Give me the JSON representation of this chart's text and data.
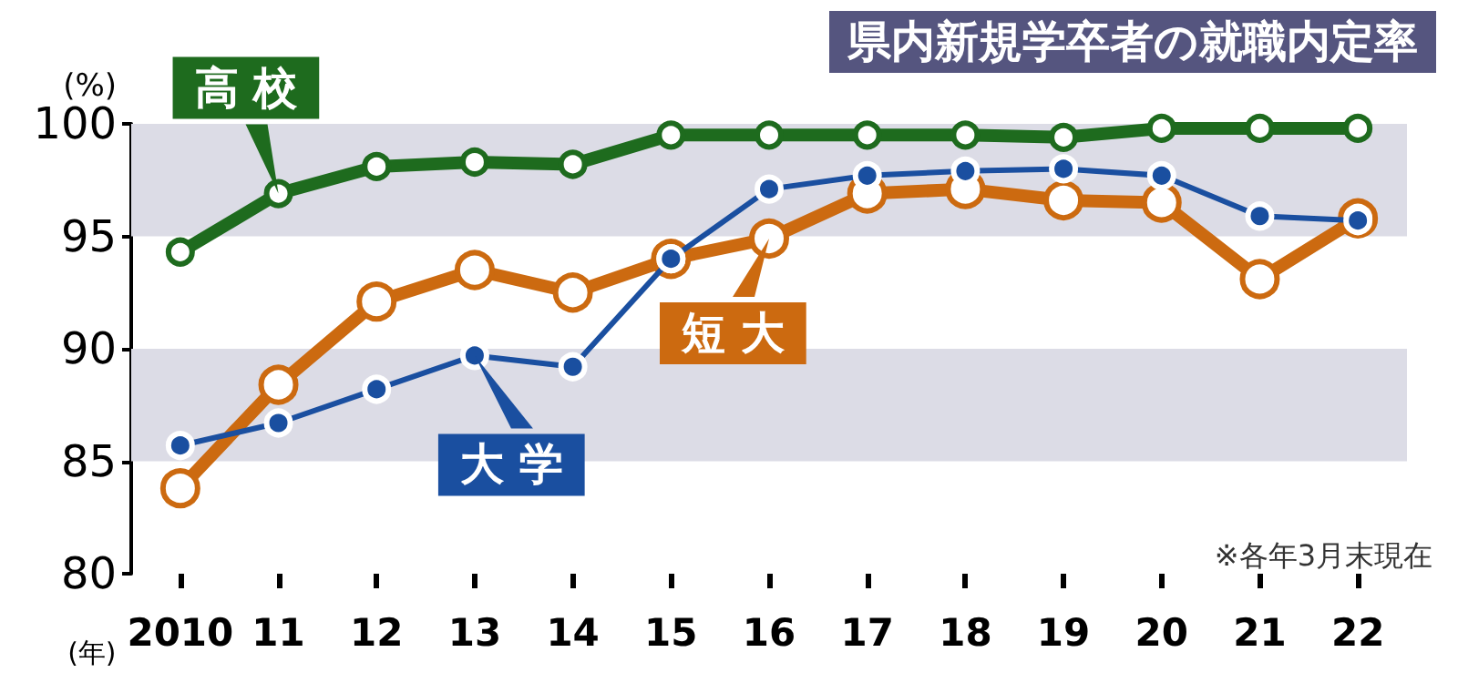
{
  "chart_data": {
    "type": "line",
    "title": "県内新規学卒者の就職内定率",
    "xlabel": "(年)",
    "ylabel": "(%)",
    "categories": [
      "2010",
      "11",
      "12",
      "13",
      "14",
      "15",
      "16",
      "17",
      "18",
      "19",
      "20",
      "21",
      "22"
    ],
    "series": [
      {
        "name": "高校",
        "color": "#1e6b1e",
        "values": [
          94.3,
          96.9,
          98.1,
          98.3,
          98.2,
          99.5,
          99.5,
          99.5,
          99.5,
          99.4,
          99.8,
          99.8,
          99.8
        ]
      },
      {
        "name": "短大",
        "color": "#cc6a10",
        "values": [
          83.8,
          88.4,
          92.1,
          93.5,
          92.5,
          94.0,
          94.9,
          96.9,
          97.1,
          96.6,
          96.5,
          93.1,
          95.8
        ]
      },
      {
        "name": "大学",
        "color": "#1a4fa0",
        "values": [
          85.7,
          86.7,
          88.2,
          89.7,
          89.2,
          94.0,
          97.1,
          97.7,
          97.9,
          98.0,
          97.7,
          95.9,
          95.7
        ]
      }
    ],
    "ylim": [
      80,
      100
    ],
    "yticks": [
      80,
      85,
      90,
      95,
      100
    ],
    "bands": [
      {
        "axis": "y",
        "from": 85,
        "to": 90,
        "color": "#dcdce6"
      },
      {
        "axis": "y",
        "from": 95,
        "to": 100,
        "color": "#dcdce6"
      }
    ],
    "annotations": [
      "※各年3月末現在"
    ],
    "grid": false,
    "legend": "center",
    "marker": "circle",
    "line_style": "solid"
  }
}
